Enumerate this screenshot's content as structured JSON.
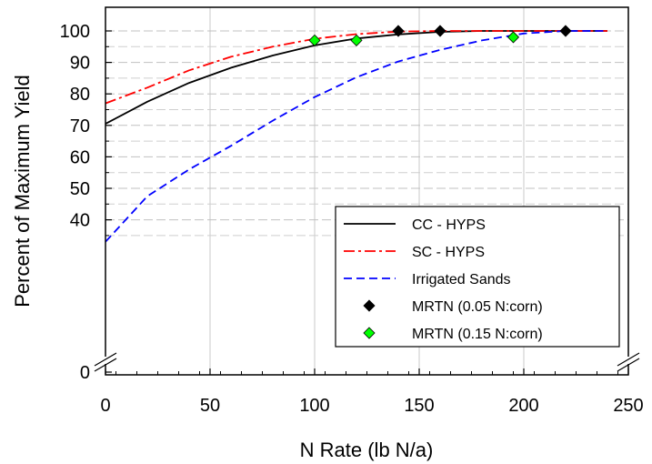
{
  "chart_data": {
    "type": "line",
    "xlabel": "N Rate (lb N/a)",
    "ylabel": "Percent of Maximum Yield",
    "xlim": [
      0,
      250
    ],
    "ylim_display": [
      0,
      105
    ],
    "y_axis_break": true,
    "x_axis_break": true,
    "x_ticks": [
      "0",
      "50",
      "100",
      "150",
      "200",
      "250"
    ],
    "y_ticks": [
      "0",
      "40",
      "50",
      "60",
      "70",
      "80",
      "90",
      "100"
    ],
    "grid": true,
    "legend_placement": "bottom-right",
    "series": [
      {
        "name": "CC - HYPS",
        "style": "solid",
        "color": "#000000",
        "x": [
          0,
          20,
          40,
          60,
          80,
          100,
          120,
          140,
          160,
          180,
          200,
          220,
          240
        ],
        "y": [
          70.5,
          77.5,
          83.5,
          88.3,
          92.2,
          95.4,
          97.6,
          98.9,
          99.7,
          100,
          100,
          100,
          100
        ]
      },
      {
        "name": "SC - HYPS",
        "style": "dash-dot",
        "color": "#ff0000",
        "x": [
          0,
          20,
          40,
          60,
          80,
          100,
          120,
          140,
          160,
          180,
          200,
          220,
          240
        ],
        "y": [
          77,
          82,
          87.5,
          91.8,
          95,
          97.5,
          99,
          99.8,
          100,
          100,
          100,
          100,
          100
        ]
      },
      {
        "name": "Irrigated Sands",
        "style": "dashed",
        "color": "#0000ff",
        "x": [
          0,
          20,
          40,
          60,
          80,
          100,
          120,
          140,
          160,
          180,
          200,
          220,
          240
        ],
        "y": [
          33,
          47.5,
          56,
          63.5,
          71.5,
          79,
          85.3,
          90.3,
          94,
          97,
          99.2,
          100,
          100
        ]
      },
      {
        "name": "MRTN (0.05 N:corn)",
        "style": "marker",
        "marker": "diamond",
        "color": "#000000",
        "x": [
          140,
          160,
          220
        ],
        "y": [
          100,
          100,
          100
        ]
      },
      {
        "name": "MRTN (0.15 N:corn)",
        "style": "marker",
        "marker": "diamond",
        "color": "#00ff00",
        "x": [
          100,
          120,
          195
        ],
        "y": [
          97,
          97,
          98
        ]
      }
    ]
  }
}
